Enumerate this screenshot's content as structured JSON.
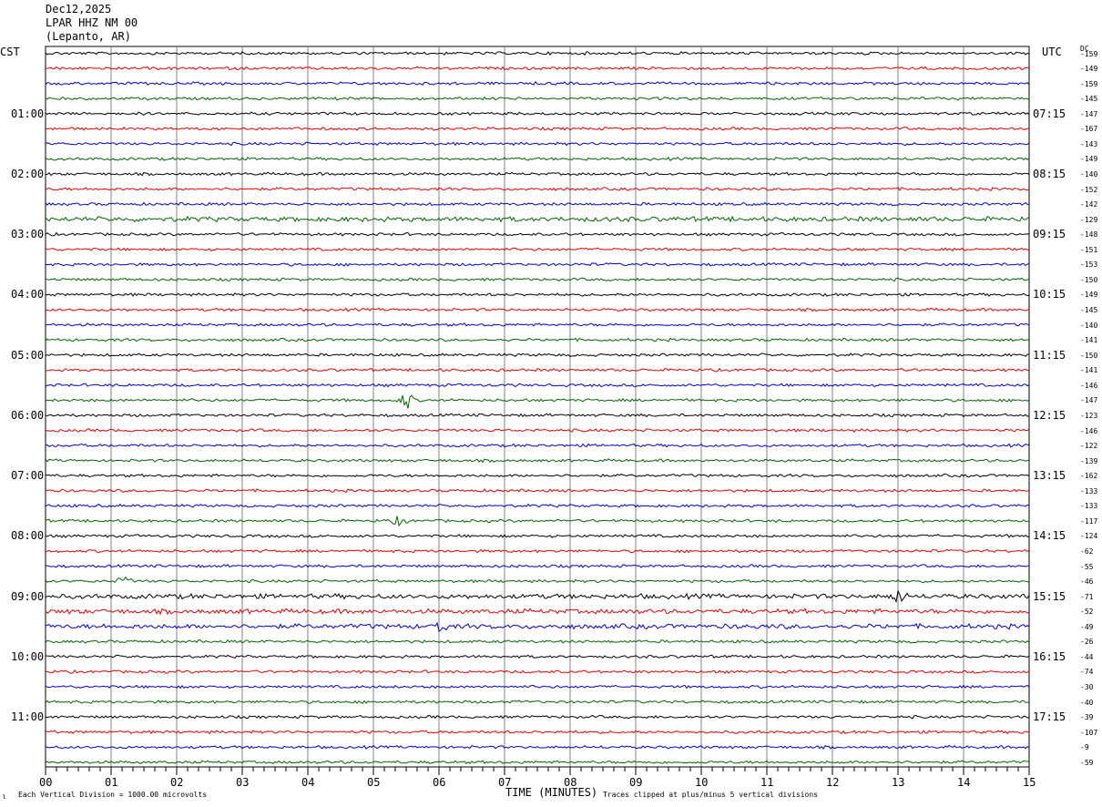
{
  "header": {
    "date": "Dec12,2025",
    "station": "LPAR HHZ NM 00",
    "location": "(Lepanto, AR)"
  },
  "left_timezone": "CST",
  "right_timezone": "UTC",
  "dc_label": "DC",
  "footer": {
    "scale_note": "Each Vertical Division = 1000.00 microvolts",
    "xlabel": "TIME (MINUTES)",
    "clip_note": "Traces clipped at plus/minus 5 vertical divisions",
    "corner_mark": "ι"
  },
  "chart_data": {
    "type": "line",
    "title": "Dec12,2025 LPAR HHZ NM 00 (Lepanto, AR)",
    "xlabel": "TIME (MINUTES)",
    "xlim": [
      0,
      15
    ],
    "x_ticks": [
      "00",
      "01",
      "02",
      "03",
      "04",
      "05",
      "06",
      "07",
      "08",
      "09",
      "10",
      "11",
      "12",
      "13",
      "14",
      "15"
    ],
    "left_hour_labels": [
      "01:00",
      "02:00",
      "03:00",
      "04:00",
      "05:00",
      "06:00",
      "07:00",
      "08:00",
      "09:00",
      "10:00",
      "11:00"
    ],
    "right_hour_labels": [
      "07:15",
      "08:15",
      "09:15",
      "10:15",
      "11:15",
      "12:15",
      "13:15",
      "14:15",
      "15:15",
      "16:15",
      "17:15"
    ],
    "trace_colors": [
      "#000000",
      "#e00000",
      "#0000c8",
      "#006400"
    ],
    "traces_per_row_group": 4,
    "trace_count": 48,
    "dc_offsets": [
      "-159",
      "-149",
      "-159",
      "-145",
      "-147",
      "-167",
      "-143",
      "-149",
      "-140",
      "-152",
      "-142",
      "-129",
      "-148",
      "-151",
      "-153",
      "-150",
      "-149",
      "-145",
      "-140",
      "-141",
      "-150",
      "-141",
      "-146",
      "-147",
      "-123",
      "-146",
      "-122",
      "-139",
      "-162",
      "-133",
      "-133",
      "-117",
      "-124",
      "-62",
      "-55",
      "-46",
      "-71",
      "-52",
      "-49",
      "-26",
      "-44",
      "-74",
      "-30",
      "-40",
      "-39",
      "-107",
      "-9",
      "-59"
    ],
    "events": [
      {
        "trace": 23,
        "minute": 5.5,
        "amplitude": 10
      },
      {
        "trace": 31,
        "minute": 5.4,
        "amplitude": 5
      },
      {
        "trace": 35,
        "minute": 1.2,
        "amplitude": 5
      },
      {
        "trace": 36,
        "minute": 13.0,
        "amplitude": 8
      },
      {
        "trace": 38,
        "minute": 6.0,
        "amplitude": 6
      }
    ],
    "noisy_traces": [
      11,
      36,
      37,
      38
    ]
  }
}
